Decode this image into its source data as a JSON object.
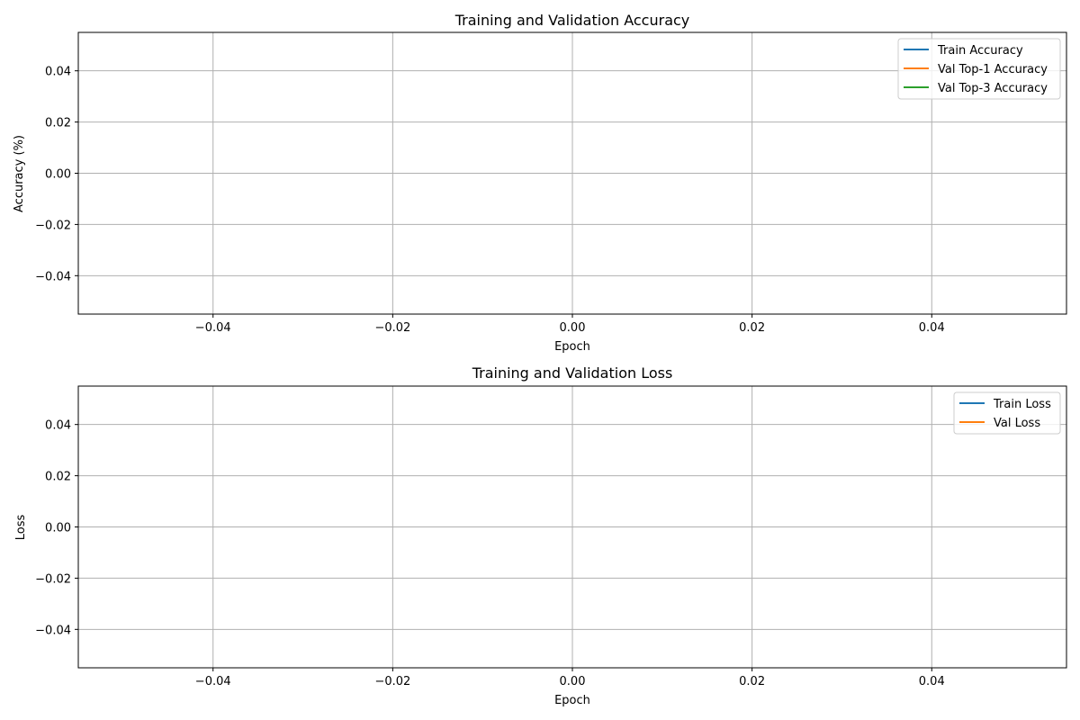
{
  "chart_data": [
    {
      "type": "line",
      "title": "Training and Validation Accuracy",
      "xlabel": "Epoch",
      "ylabel": "Accuracy (%)",
      "xlim": [
        -0.055,
        0.055
      ],
      "ylim": [
        -0.055,
        0.055
      ],
      "x_ticks": [
        -0.04,
        -0.02,
        0.0,
        0.02,
        0.04
      ],
      "x_tick_labels": [
        "−0.04",
        "−0.02",
        "0.00",
        "0.02",
        "0.04"
      ],
      "y_ticks": [
        0.04,
        0.02,
        0.0,
        -0.02,
        -0.04
      ],
      "y_tick_labels": [
        "0.04",
        "0.02",
        "0.00",
        "−0.02",
        "−0.04"
      ],
      "grid": true,
      "legend_position": "top-right",
      "x": [],
      "series": [
        {
          "name": "Train Accuracy",
          "color": "#1f77b4",
          "values": []
        },
        {
          "name": "Val Top-1 Accuracy",
          "color": "#ff7f0e",
          "values": []
        },
        {
          "name": "Val Top-3 Accuracy",
          "color": "#2ca02c",
          "values": []
        }
      ]
    },
    {
      "type": "line",
      "title": "Training and Validation Loss",
      "xlabel": "Epoch",
      "ylabel": "Loss",
      "xlim": [
        -0.055,
        0.055
      ],
      "ylim": [
        -0.055,
        0.055
      ],
      "x_ticks": [
        -0.04,
        -0.02,
        0.0,
        0.02,
        0.04
      ],
      "x_tick_labels": [
        "−0.04",
        "−0.02",
        "0.00",
        "0.02",
        "0.04"
      ],
      "y_ticks": [
        0.04,
        0.02,
        0.0,
        -0.02,
        -0.04
      ],
      "y_tick_labels": [
        "0.04",
        "0.02",
        "0.00",
        "−0.02",
        "−0.04"
      ],
      "grid": true,
      "legend_position": "top-right",
      "x": [],
      "series": [
        {
          "name": "Train Loss",
          "color": "#1f77b4",
          "values": []
        },
        {
          "name": "Val Loss",
          "color": "#ff7f0e",
          "values": []
        }
      ]
    }
  ]
}
